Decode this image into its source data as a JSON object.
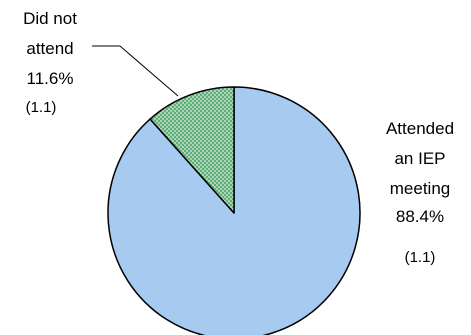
{
  "chart_data": {
    "type": "pie",
    "title": "",
    "slices": [
      {
        "label_lines": [
          "Attended",
          "an IEP",
          "meeting"
        ],
        "value_label": "88.4%",
        "value": 88.4,
        "se_label": "(1.1)",
        "color": "#a6caf0"
      },
      {
        "label_lines": [
          "Did not",
          "attend"
        ],
        "value_label": "11.6%",
        "value": 11.6,
        "se_label": "(1.1)",
        "color": "#5fae78",
        "pattern": "dotted"
      }
    ],
    "legend": "none"
  }
}
